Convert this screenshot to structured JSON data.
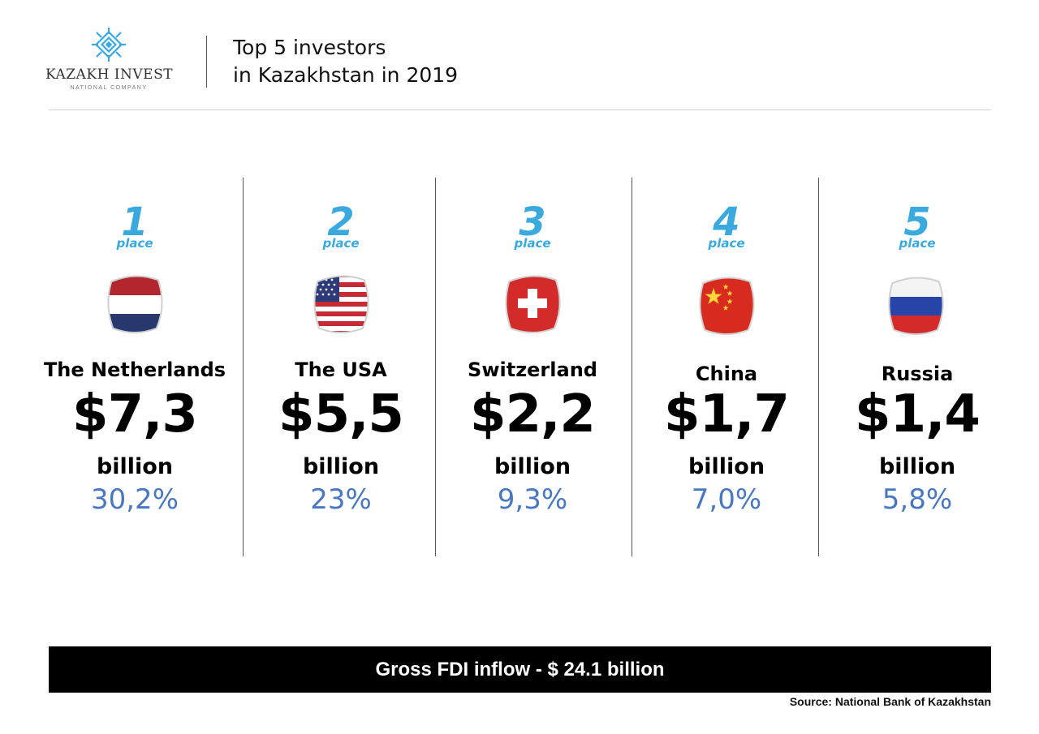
{
  "brand": {
    "name": "KAZAKH INVEST",
    "subtitle": "NATIONAL COMPANY",
    "accent_color": "#3aa9dd",
    "logo_icon": "diamond-ornament-icon"
  },
  "header": {
    "title_line1": "Top 5 investors",
    "title_line2": "in Kazakhstan in 2019"
  },
  "chart_data": {
    "type": "table",
    "title": "Top 5 investors in Kazakhstan in 2019",
    "place_label": "place",
    "unit_label": "billion",
    "columns": [
      "rank",
      "country",
      "value",
      "share"
    ],
    "rows": [
      {
        "rank": "1",
        "country": "The Netherlands",
        "value": "$7,3",
        "share": "30,2%",
        "flag_icon": "netherlands-flag-icon"
      },
      {
        "rank": "2",
        "country": "The USA",
        "value": "$5,5",
        "share": "23%",
        "flag_icon": "usa-flag-icon"
      },
      {
        "rank": "3",
        "country": "Switzerland",
        "value": "$2,2",
        "share": "9,3%",
        "flag_icon": "switzerland-flag-icon"
      },
      {
        "rank": "4",
        "country": "China",
        "value": "$1,7",
        "share": "7,0%",
        "flag_icon": "china-flag-icon"
      },
      {
        "rank": "5",
        "country": "Russia",
        "value": "$1,4",
        "share": "5,8%",
        "flag_icon": "russia-flag-icon"
      }
    ],
    "share_color": "#4a78c0"
  },
  "footer": {
    "banner": "Gross FDI inflow - $ 24.1 billion",
    "source": "Source: National Bank of Kazakhstan"
  }
}
